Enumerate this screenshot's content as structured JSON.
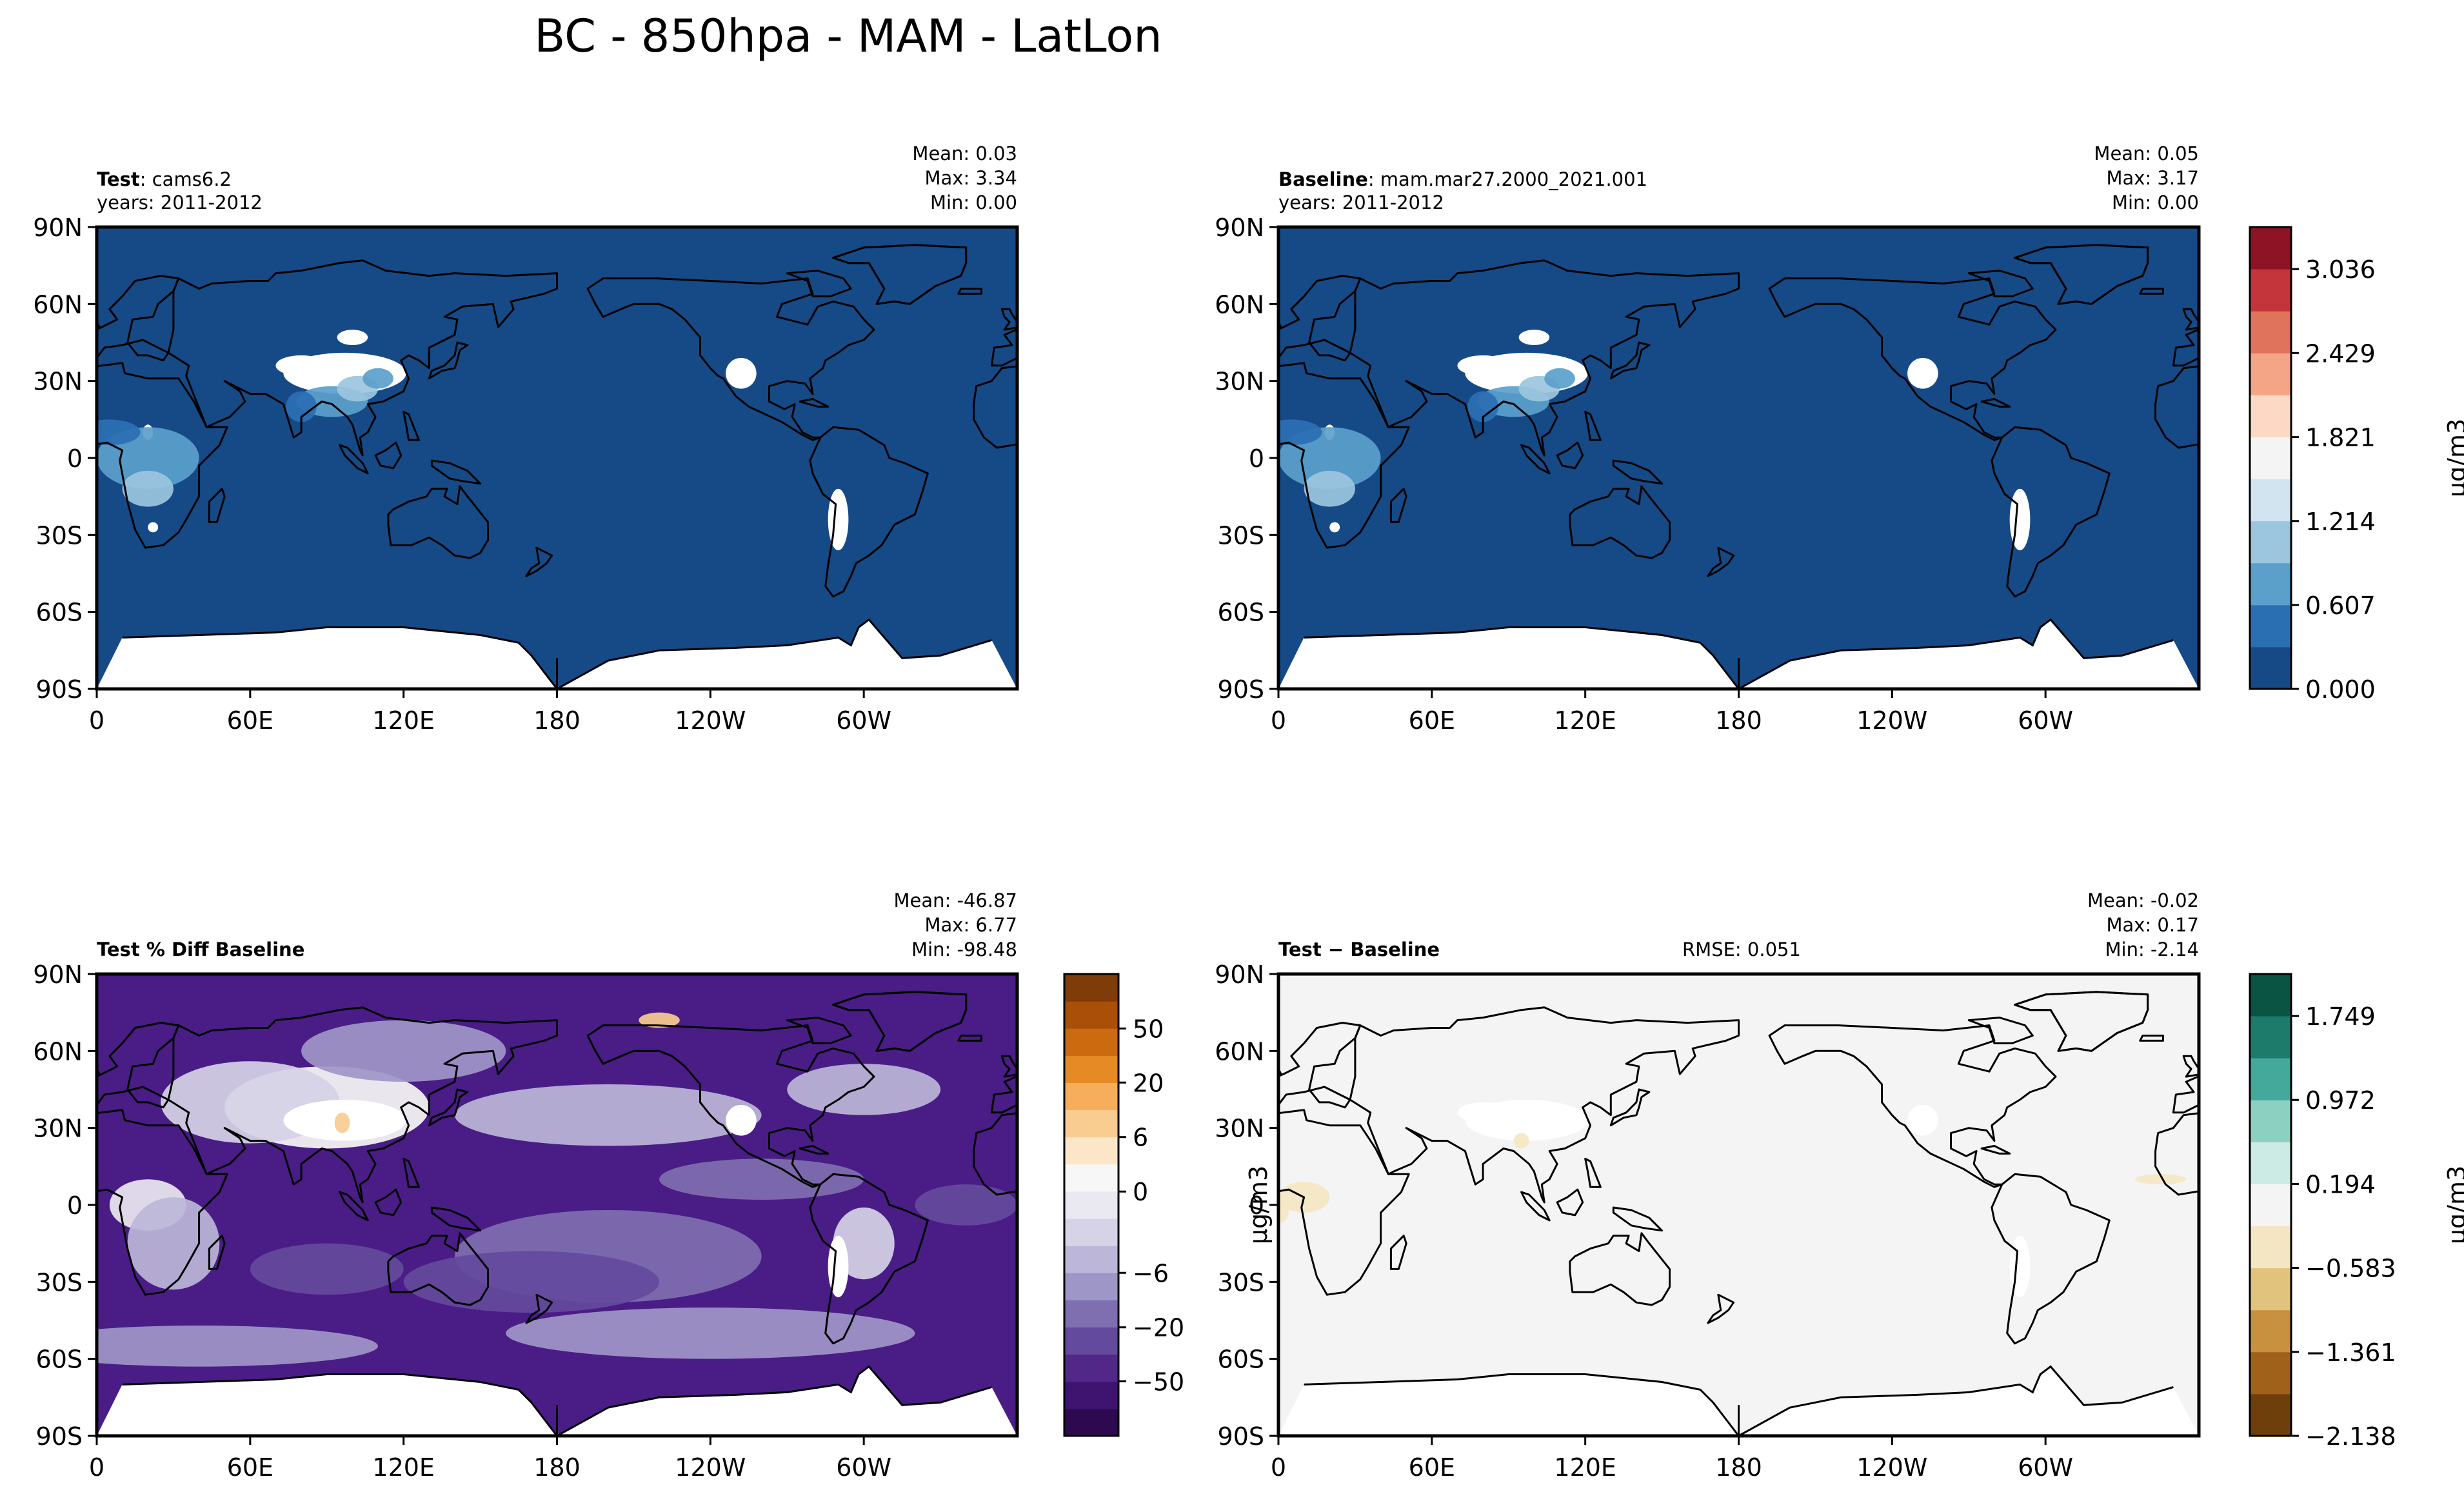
{
  "figure": {
    "title": "BC - 850hpa - MAM - LatLon",
    "background": "#ffffff"
  },
  "chart_data": [
    {
      "type": "heatmap",
      "id": "test",
      "title_bold": "Test",
      "title_rest": ": cams6.2",
      "subtitle": "years: 2011-2012",
      "stats": [
        {
          "label": "Mean:",
          "value": "0.03"
        },
        {
          "label": "Max:",
          "value": "3.34"
        },
        {
          "label": "Min:",
          "value": "0.00"
        }
      ],
      "xticks": [
        "0",
        "60E",
        "120E",
        "180",
        "120W",
        "60W"
      ],
      "yticks": [
        "90N",
        "60N",
        "30N",
        "0",
        "30S",
        "60S",
        "90S"
      ],
      "base_color": "#154a87",
      "theme": "conc"
    },
    {
      "type": "heatmap",
      "id": "baseline",
      "title_bold": "Baseline",
      "title_rest": ": mam.mar27.2000_2021.001",
      "subtitle": "years: 2011-2012",
      "stats": [
        {
          "label": "Mean:",
          "value": "0.05"
        },
        {
          "label": "Max:",
          "value": "3.17"
        },
        {
          "label": "Min:",
          "value": "0.00"
        }
      ],
      "xticks": [
        "0",
        "60E",
        "120E",
        "180",
        "120W",
        "60W"
      ],
      "yticks": [
        "90N",
        "60N",
        "30N",
        "0",
        "30S",
        "60S",
        "90S"
      ],
      "base_color": "#154a87",
      "theme": "conc",
      "colorbar": {
        "label": "μg/m3",
        "colors": [
          "#154a87",
          "#2b6fb3",
          "#5b9fcb",
          "#9cc6de",
          "#d2e4ef",
          "#f4f4f4",
          "#fbd9c5",
          "#f3a585",
          "#e0735c",
          "#c3353a",
          "#8e1325"
        ],
        "ticks": [
          "0.000",
          "0.607",
          "1.214",
          "1.821",
          "2.429",
          "3.036"
        ],
        "tick_values": [
          0.0,
          0.607,
          1.214,
          1.821,
          2.429,
          3.036
        ],
        "range": [
          0.0,
          3.34
        ]
      }
    },
    {
      "type": "heatmap",
      "id": "pctdiff",
      "title_bold": "Test % Diff Baseline",
      "title_rest": "",
      "subtitle": "",
      "stats": [
        {
          "label": "Mean:",
          "value": "-46.87"
        },
        {
          "label": "Max:",
          "value": "6.77"
        },
        {
          "label": "Min:",
          "value": "-98.48"
        }
      ],
      "xticks": [
        "0",
        "60E",
        "120E",
        "180",
        "120W",
        "60W"
      ],
      "yticks": [
        "90N",
        "60N",
        "30N",
        "0",
        "30S",
        "60S",
        "90S"
      ],
      "base_color": "#4a1d86",
      "theme": "pct",
      "colorbar": {
        "label": "μg/m3",
        "colors": [
          "#2d0a4f",
          "#3e1470",
          "#512888",
          "#644a9c",
          "#7f6fb0",
          "#9f96c8",
          "#bcb6d8",
          "#d6d3e7",
          "#eae8f1",
          "#f7f7f7",
          "#fbe7c7",
          "#f9cc90",
          "#f6ae5c",
          "#e68a26",
          "#cc6a0f",
          "#a94f08",
          "#7f3b08"
        ],
        "ticks": [
          "−50",
          "−20",
          "−6",
          "0",
          "6",
          "20",
          "50"
        ],
        "tick_positions": [
          0.118,
          0.235,
          0.353,
          0.529,
          0.647,
          0.765,
          0.882
        ]
      }
    },
    {
      "type": "heatmap",
      "id": "diff",
      "title_bold": "Test − Baseline",
      "title_rest": "",
      "subtitle": "",
      "rmse": "RMSE: 0.051",
      "stats": [
        {
          "label": "Mean:",
          "value": "-0.02"
        },
        {
          "label": "Max:",
          "value": "0.17"
        },
        {
          "label": "Min:",
          "value": "-2.14"
        }
      ],
      "xticks": [
        "0",
        "60E",
        "120E",
        "180",
        "120W",
        "60W"
      ],
      "yticks": [
        "90N",
        "60N",
        "30N",
        "0",
        "30S",
        "60S",
        "90S"
      ],
      "base_color": "#f3f4f3",
      "theme": "diff",
      "colorbar": {
        "label": "μg/m3",
        "colors": [
          "#6f3f0b",
          "#a0611a",
          "#c89140",
          "#e2c37d",
          "#f5e6c3",
          "#f4f4f4",
          "#cdebe5",
          "#8cd0c2",
          "#44a89a",
          "#1d7b6b",
          "#0a5443"
        ],
        "ticks": [
          "−2.138",
          "−1.361",
          "−0.583",
          "0.194",
          "0.972",
          "1.749"
        ],
        "tick_values": [
          -2.138,
          -1.361,
          -0.583,
          0.194,
          0.972,
          1.749
        ],
        "range": [
          -2.138,
          2.138
        ]
      }
    }
  ]
}
